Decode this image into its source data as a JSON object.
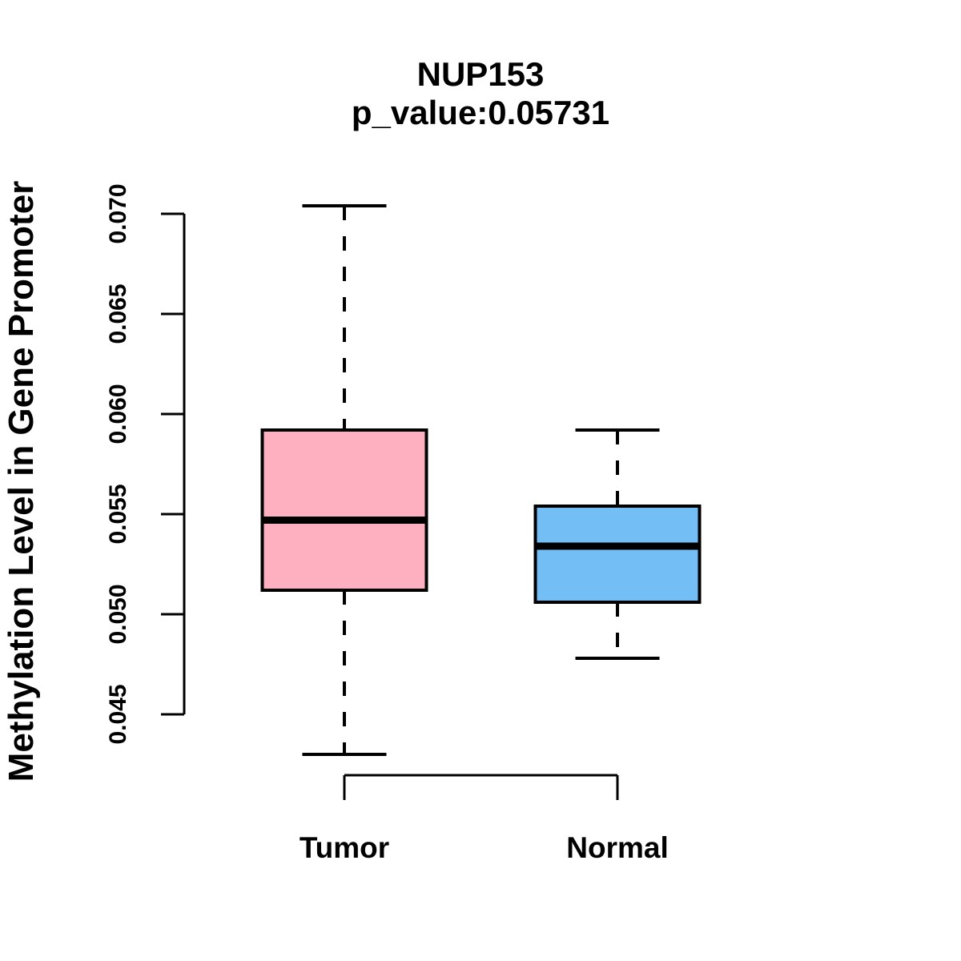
{
  "chart_data": {
    "type": "boxplot",
    "title": "NUP153",
    "subtitle": "p_value:0.05731",
    "ylabel": "Methylation Level in Gene Promoter",
    "xlabel": "",
    "categories": [
      "Tumor",
      "Normal"
    ],
    "yticks": [
      0.045,
      0.05,
      0.055,
      0.06,
      0.065,
      0.07
    ],
    "ytick_labels": [
      "0.045",
      "0.050",
      "0.055",
      "0.060",
      "0.065",
      "0.070"
    ],
    "ylim": [
      0.043,
      0.0705
    ],
    "grid": "off",
    "legend": "none",
    "series": [
      {
        "name": "Tumor",
        "color": "#FFB0C0",
        "lower_whisker": 0.043,
        "q1": 0.0512,
        "median": 0.0547,
        "q3": 0.0592,
        "upper_whisker": 0.0704
      },
      {
        "name": "Normal",
        "color": "#74BEF6",
        "lower_whisker": 0.0478,
        "q1": 0.0506,
        "median": 0.0534,
        "q3": 0.0554,
        "upper_whisker": 0.0592
      }
    ],
    "line_color": "#000000",
    "background_color": "#ffffff"
  }
}
